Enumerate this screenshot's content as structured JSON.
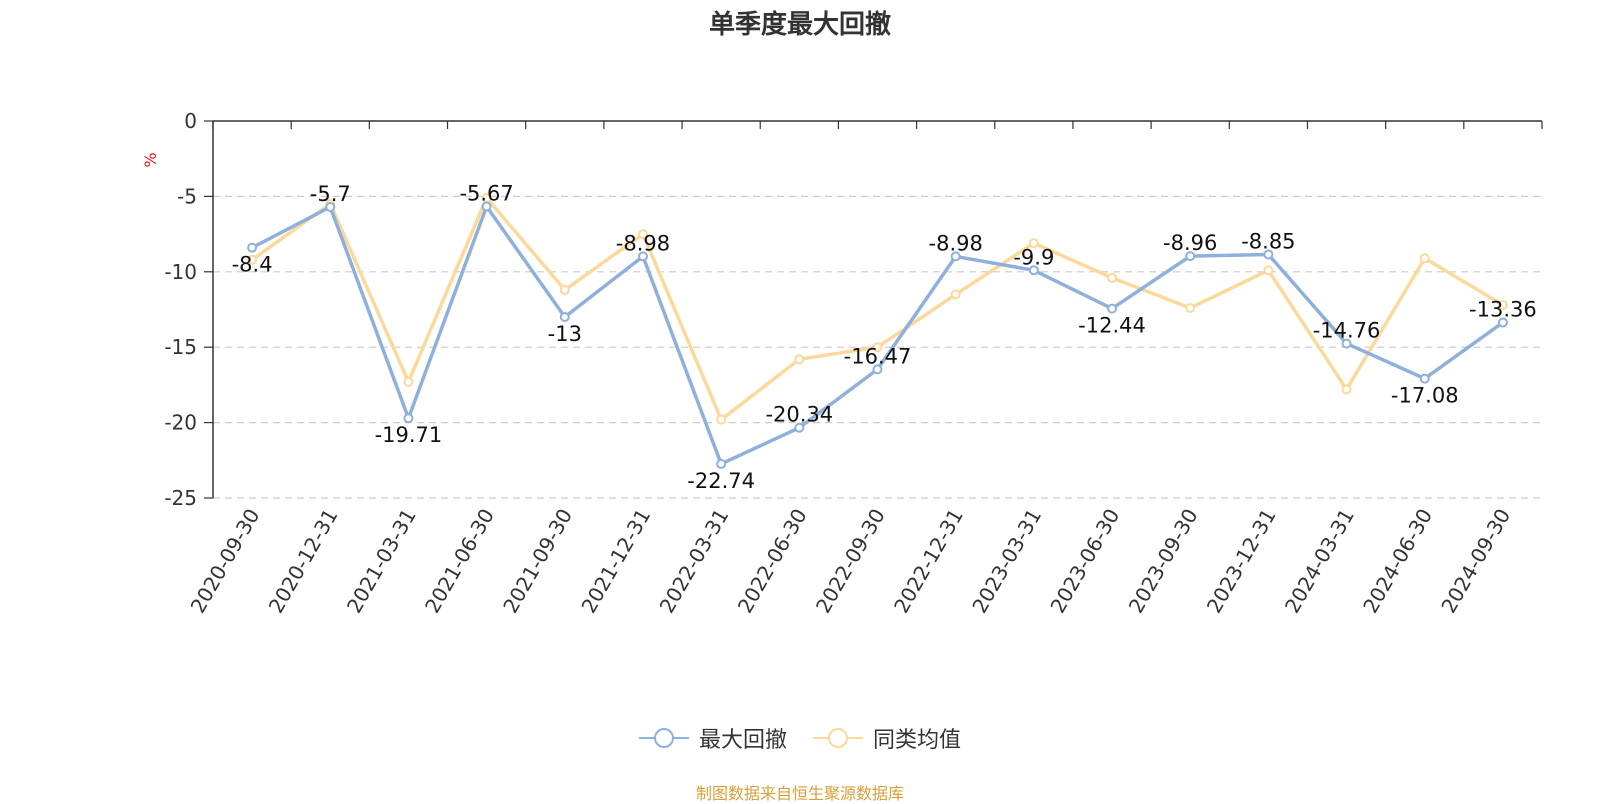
{
  "chart_data": {
    "type": "line",
    "title": "单季度最大回撤",
    "ylabel": "%",
    "ylim": [
      -25,
      0
    ],
    "yticks": [
      0,
      -5,
      -10,
      -15,
      -20,
      -25
    ],
    "grid": true,
    "legend_position": "bottom-center",
    "categories": [
      "2020-09-30",
      "2020-12-31",
      "2021-03-31",
      "2021-06-30",
      "2021-09-30",
      "2021-12-31",
      "2022-03-31",
      "2022-06-30",
      "2022-09-30",
      "2022-12-31",
      "2023-03-31",
      "2023-06-30",
      "2023-09-30",
      "2023-12-31",
      "2024-03-31",
      "2024-06-30",
      "2024-09-30"
    ],
    "series": [
      {
        "name": "最大回撤",
        "color": "#8fb0dc",
        "values": [
          -8.4,
          -5.7,
          -19.71,
          -5.67,
          -13,
          -8.98,
          -22.74,
          -20.34,
          -16.47,
          -8.98,
          -9.9,
          -12.44,
          -8.96,
          -8.85,
          -14.76,
          -17.08,
          -13.36
        ],
        "labels": [
          "-8.4",
          "-5.7",
          "-19.71",
          "-5.67",
          "-13",
          "-8.98",
          "-22.74",
          "-20.34",
          "-16.47",
          "-8.98",
          "-9.9",
          "-12.44",
          "-8.96",
          "-8.85",
          "-14.76",
          "-17.08",
          "-13.36"
        ]
      },
      {
        "name": "同类均值",
        "color": "#fcd99a",
        "values": [
          -9.2,
          -5.5,
          -17.3,
          -5.1,
          -11.2,
          -7.5,
          -19.8,
          -15.8,
          -15.0,
          -11.5,
          -8.1,
          -10.4,
          -12.4,
          -9.9,
          -17.8,
          -9.1,
          -12.2
        ]
      }
    ]
  },
  "source_note": "制图数据来自恒生聚源数据库",
  "colors": {
    "axis": "#333333",
    "grid": "#cccccc",
    "ylabel": "#e8141a",
    "source": "#d6a13a"
  }
}
